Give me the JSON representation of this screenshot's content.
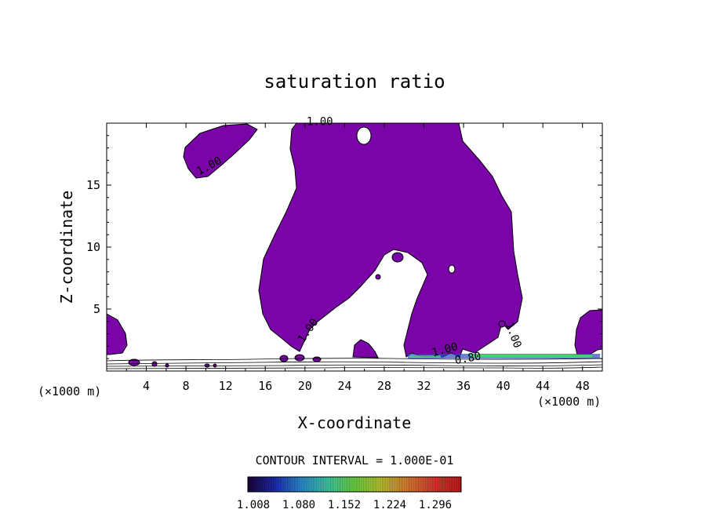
{
  "chart_data": {
    "type": "contour",
    "title": "saturation ratio",
    "xlabel": "X-coordinate",
    "ylabel": "Z-coordinate",
    "x_unit_left": "(×1000 m)",
    "x_unit_right": "(×1000 m)",
    "xlim": [
      0,
      50
    ],
    "ylim": [
      0,
      20
    ],
    "x_ticks": [
      4,
      8,
      12,
      16,
      20,
      24,
      28,
      32,
      36,
      40,
      44,
      48
    ],
    "x_tick_labels": [
      "4",
      "8",
      "12",
      "16",
      "20",
      "24",
      "28",
      "32",
      "36",
      "40",
      "44",
      "48"
    ],
    "y_ticks": [
      5,
      10,
      15
    ],
    "y_tick_labels": [
      "5",
      "10",
      "15"
    ],
    "contour_labels": [
      {
        "text": "1.00",
        "x": 21.5,
        "y": 19.85
      },
      {
        "text": "1.00",
        "x": 10.5,
        "y": 16.3
      },
      {
        "text": "1.00",
        "x": 20.6,
        "y": 3.1
      },
      {
        "text": "1.00",
        "x": 34.2,
        "y": 1.45
      },
      {
        "text": "1.00",
        "x": 40.7,
        "y": 2.8
      },
      {
        "text": "0.80",
        "x": 36.5,
        "y": 0.75
      }
    ],
    "fill_color": "#7a04a8",
    "highlight_color": "#3cd27a",
    "contour_interval_label": "CONTOUR INTERVAL = 1.000E-01",
    "colorbar": {
      "labels": [
        "1.008",
        "1.080",
        "1.152",
        "1.224",
        "1.296"
      ],
      "colors": [
        "#1a0038",
        "#1c2aa8",
        "#2a8ad0",
        "#3cc8a0",
        "#6ad040",
        "#b8c030",
        "#d87a30",
        "#d23a30",
        "#c01818"
      ]
    }
  }
}
